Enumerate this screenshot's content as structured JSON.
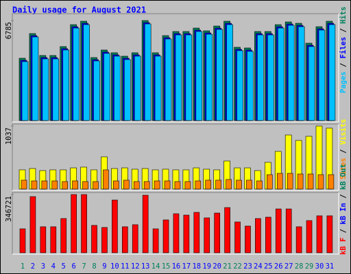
{
  "title": "Daily usage for August 2021",
  "chart_data": [
    {
      "type": "bar",
      "ylim": [
        0,
        6785
      ],
      "yticks": [
        6785
      ],
      "legend_separator": " / ",
      "series": [
        {
          "name": "Hits",
          "color": "#00805c",
          "values": [
            4229,
            5902,
            4415,
            4415,
            5019,
            6506,
            6738,
            4275,
            4787,
            4601,
            4368,
            4601,
            6785,
            4601,
            5763,
            6041,
            6041,
            6274,
            6088,
            6413,
            6738,
            4973,
            4926,
            6041,
            6041,
            6506,
            6692,
            6599,
            5251,
            6367,
            6738
          ]
        },
        {
          "name": "Files",
          "color": "#0000ff",
          "values": [
            4089,
            5762,
            4275,
            4275,
            4879,
            6366,
            6598,
            4135,
            4647,
            4461,
            4228,
            4461,
            6645,
            4461,
            5623,
            5901,
            5901,
            6134,
            5948,
            6273,
            6598,
            4833,
            4786,
            5901,
            5901,
            6366,
            6552,
            6459,
            5111,
            6227,
            6598
          ]
        },
        {
          "name": "Pages",
          "color": "#00c0ff",
          "values": [
            3999,
            5672,
            4185,
            4185,
            4789,
            6276,
            6508,
            4045,
            4557,
            4371,
            4138,
            4371,
            6555,
            4371,
            5533,
            5811,
            5811,
            6044,
            5858,
            6183,
            6508,
            4743,
            4696,
            5811,
            5811,
            6276,
            6462,
            6369,
            5021,
            6137,
            6508
          ]
        }
      ]
    },
    {
      "type": "bar",
      "ylim": [
        0,
        1037
      ],
      "yticks": [
        1037
      ],
      "legend_separator": " / ",
      "series": [
        {
          "name": "Visits",
          "color": "#ffff00",
          "values": [
            316,
            338,
            304,
            316,
            316,
            349,
            361,
            316,
            530,
            338,
            349,
            327,
            338,
            316,
            327,
            316,
            316,
            349,
            327,
            316,
            462,
            349,
            349,
            304,
            440,
            620,
            890,
            800,
            868,
            1037,
            1003
          ]
        },
        {
          "name": "Sites",
          "color": "#ff8000",
          "values": [
            147,
            135,
            135,
            135,
            124,
            135,
            124,
            124,
            316,
            135,
            147,
            124,
            124,
            135,
            135,
            124,
            124,
            135,
            147,
            147,
            158,
            147,
            147,
            135,
            237,
            259,
            259,
            248,
            248,
            237,
            237
          ]
        }
      ]
    },
    {
      "type": "bar",
      "ylim": [
        0,
        346721
      ],
      "yticks": [
        346721
      ],
      "legend_separator": " / ",
      "categories": [
        "1",
        "2",
        "3",
        "4",
        "5",
        "6",
        "7",
        "8",
        "9",
        "10",
        "11",
        "12",
        "13",
        "14",
        "15",
        "16",
        "17",
        "18",
        "19",
        "20",
        "21",
        "22",
        "23",
        "24",
        "25",
        "26",
        "27",
        "28",
        "29",
        "30",
        "31"
      ],
      "category_colors": [
        "#00805c",
        "#0000ff",
        "#0000ff",
        "#0000ff",
        "#0000ff",
        "#0000ff",
        "#00805c",
        "#00805c",
        "#0000ff",
        "#0000ff",
        "#0000ff",
        "#0000ff",
        "#0000ff",
        "#00805c",
        "#00805c",
        "#0000ff",
        "#0000ff",
        "#0000ff",
        "#0000ff",
        "#0000ff",
        "#00805c",
        "#00805c",
        "#0000ff",
        "#0000ff",
        "#0000ff",
        "#0000ff",
        "#0000ff",
        "#00805c",
        "#00805c",
        "#0000ff",
        "#0000ff"
      ],
      "series": [
        {
          "name": "kB Out",
          "color": "#00805c"
        },
        {
          "name": "kB In",
          "color": "#0000ff"
        },
        {
          "name": "kB F",
          "color": "#ff0000",
          "values": [
            142768,
            334479,
            155000,
            155000,
            203953,
            346721,
            346721,
            163163,
            150926,
            314085,
            155000,
            167242,
            342642,
            142768,
            195795,
            232507,
            224349,
            240665,
            208032,
            236586,
            269219,
            183558,
            159084,
            203953,
            212111,
            261061,
            261061,
            155000,
            191716,
            220270,
            220270
          ]
        }
      ]
    }
  ]
}
